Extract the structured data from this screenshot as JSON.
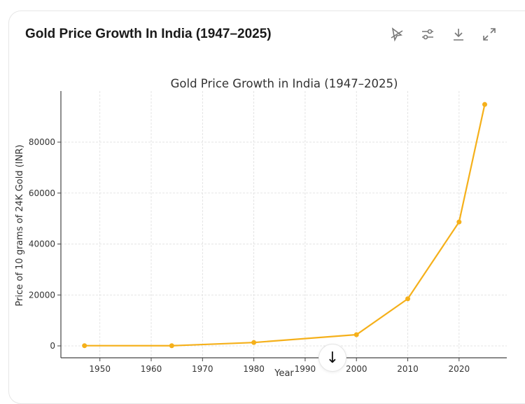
{
  "card": {
    "title": "Gold Price Growth In India (1947–2025)"
  },
  "toolbar": {
    "icons": [
      "pointer-off-icon",
      "sliders-icon",
      "download-icon",
      "expand-icon"
    ]
  },
  "scroll_button": {
    "icon": "arrow-down-icon",
    "glyph": "↓"
  },
  "chart_data": {
    "type": "line",
    "title": "Gold Price Growth in India (1947–2025)",
    "xlabel": "Year",
    "ylabel": "Price of 10 grams of 24K Gold (INR)",
    "x": [
      1947,
      1964,
      1980,
      2000,
      2010,
      2020,
      2025
    ],
    "series": [
      {
        "values": [
          89,
          63,
          1330,
          4400,
          18500,
          48650,
          94800
        ]
      }
    ],
    "xlim": [
      1942.4,
      2029.3
    ],
    "ylim": [
      -4670,
      100070
    ],
    "xticks": [
      1950,
      1960,
      1970,
      1980,
      1990,
      2000,
      2010,
      2020
    ],
    "yticks": [
      0,
      20000,
      40000,
      60000,
      80000
    ],
    "grid": true,
    "color": "#f5b01a"
  }
}
